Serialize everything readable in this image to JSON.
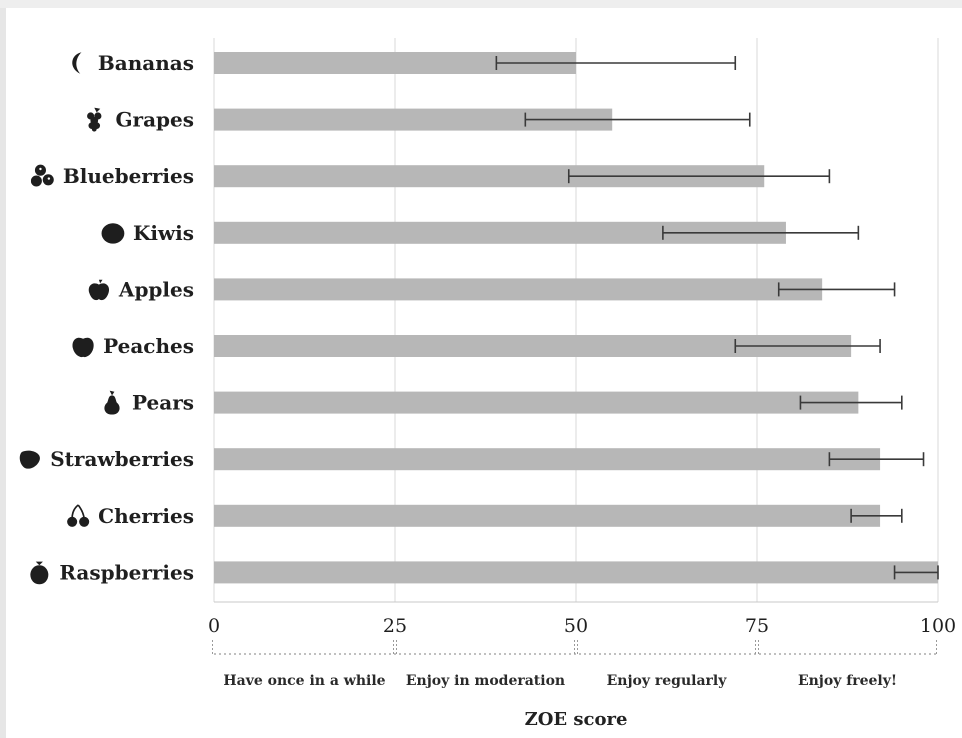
{
  "chart_data": {
    "type": "bar",
    "orientation": "horizontal",
    "categories": [
      "Bananas",
      "Grapes",
      "Blueberries",
      "Kiwis",
      "Apples",
      "Peaches",
      "Pears",
      "Strawberries",
      "Cherries",
      "Raspberries"
    ],
    "icons": [
      "banana-icon",
      "grapes-icon",
      "blueberries-icon",
      "kiwi-icon",
      "apple-icon",
      "peach-icon",
      "pear-icon",
      "strawberry-icon",
      "cherries-icon",
      "raspberry-icon"
    ],
    "values": [
      50,
      55,
      76,
      79,
      84,
      88,
      89,
      92,
      92,
      100
    ],
    "error_low": [
      39,
      43,
      49,
      62,
      78,
      72,
      81,
      85,
      88,
      94
    ],
    "error_high": [
      72,
      74,
      85,
      89,
      94,
      92,
      95,
      98,
      95,
      100
    ],
    "xlim": [
      0,
      100
    ],
    "xticks": [
      "0",
      "25",
      "50",
      "75",
      "100"
    ],
    "xlabel": "ZOE score",
    "grid": true,
    "score_bands": [
      {
        "label": "Have once in a while",
        "from": 0,
        "to": 25
      },
      {
        "label": "Enjoy in moderation",
        "from": 25,
        "to": 50
      },
      {
        "label": "Enjoy regularly",
        "from": 50,
        "to": 75
      },
      {
        "label": "Enjoy freely!",
        "from": 75,
        "to": 100
      }
    ],
    "colors": {
      "bar": "#b7b7b7",
      "error_bar": "#3a3a3a",
      "grid": "#d9d9d9",
      "axis": "#c8c8c8",
      "icon": "#1e1e1e",
      "band_divider": "#9a9a9a"
    }
  }
}
